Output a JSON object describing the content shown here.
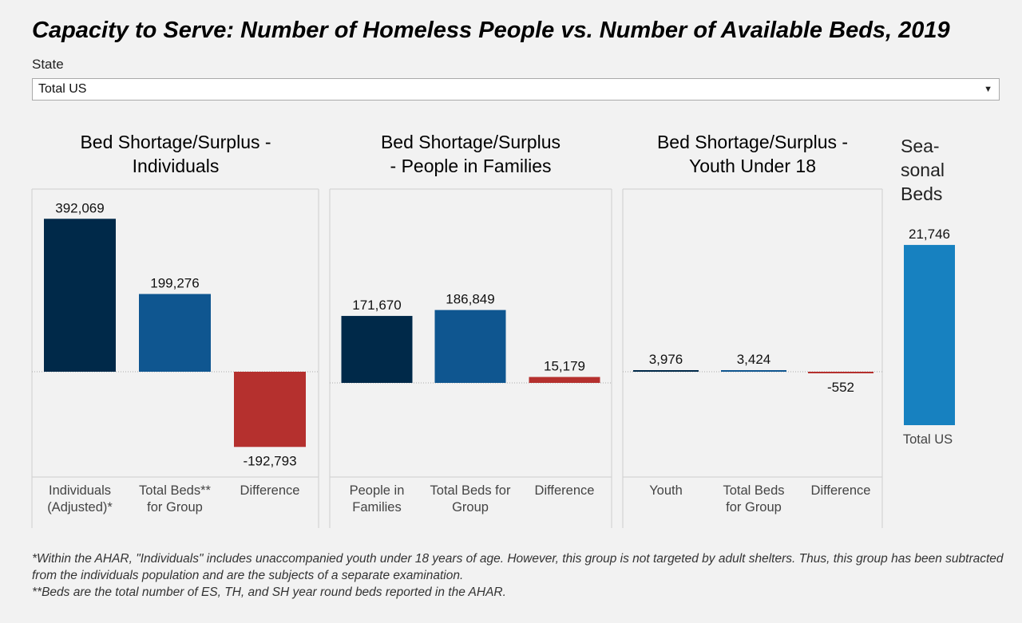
{
  "title": "Capacity to Serve:  Number of Homeless People vs. Number of Available Beds, 2019",
  "filter": {
    "label": "State",
    "value": "Total US"
  },
  "colors": {
    "dark": "#002949",
    "blue": "#0f5690",
    "red": "#b5302e",
    "seasonal": "#1781c0"
  },
  "chart_data": [
    {
      "type": "bar",
      "title": [
        "Bed Shortage/Surplus -",
        "Individuals"
      ],
      "categories": [
        [
          "Individuals",
          "(Adjusted)*"
        ],
        [
          "Total Beds**",
          "for Group"
        ],
        [
          "Difference"
        ]
      ],
      "values": [
        392069,
        199276,
        -192793
      ],
      "labels": [
        "392,069",
        "199,276",
        "-192,793"
      ]
    },
    {
      "type": "bar",
      "title": [
        "Bed Shortage/Surplus",
        "- People in Families"
      ],
      "categories": [
        [
          "People in",
          "Families"
        ],
        [
          "Total Beds for",
          "Group"
        ],
        [
          "Difference"
        ]
      ],
      "values": [
        171670,
        186849,
        15179
      ],
      "labels": [
        "171,670",
        "186,849",
        "15,179"
      ]
    },
    {
      "type": "bar",
      "title": [
        "Bed Shortage/Surplus -",
        "Youth Under 18"
      ],
      "categories": [
        [
          "Youth"
        ],
        [
          "Total Beds",
          "for Group"
        ],
        [
          "Difference"
        ]
      ],
      "values": [
        3976,
        3424,
        -552
      ],
      "labels": [
        "3,976",
        "3,424",
        "-552"
      ]
    },
    {
      "type": "bar",
      "title": [
        "Sea-",
        "sonal",
        "Beds"
      ],
      "categories": [
        "Total US"
      ],
      "values": [
        21746
      ],
      "labels": [
        "21,746"
      ]
    }
  ],
  "footnotes": [
    "*Within the AHAR, \"Individuals\" includes unaccompanied youth under 18 years of age.  However, this group is not targeted by adult shelters. Thus, this group has been subtracted from the individuals population and are the subjects of a separate examination.",
    "**Beds are the total number of ES, TH, and SH year round beds reported in the AHAR."
  ]
}
